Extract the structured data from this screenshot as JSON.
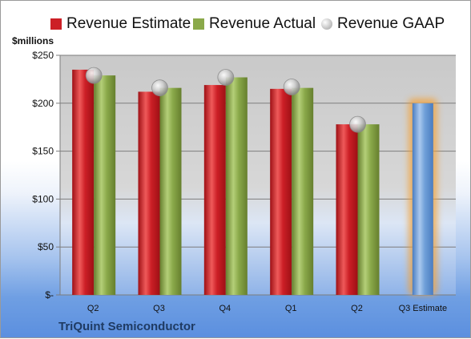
{
  "company": "TriQuint Semiconductor",
  "unit": "$millions",
  "legend": {
    "estimate": "Revenue Estimate",
    "actual": "Revenue Actual",
    "gaap": "Revenue GAAP"
  },
  "colors": {
    "estimate": "#cc1f26",
    "actual": "#8aa94a",
    "gaap": "#b8b8b8",
    "forecast": "#6f9fd8",
    "forecast_glow": "#f2a23a"
  },
  "chart_data": {
    "type": "bar",
    "categories": [
      "Q2",
      "Q3",
      "Q4",
      "Q1",
      "Q2",
      "Q3 Estimate"
    ],
    "series": [
      {
        "name": "Revenue Estimate",
        "values": [
          235,
          212,
          219,
          215,
          178,
          null
        ]
      },
      {
        "name": "Revenue Actual",
        "values": [
          229,
          216,
          227,
          216,
          178,
          null
        ]
      },
      {
        "name": "Revenue GAAP",
        "type": "scatter",
        "values": [
          229,
          216,
          227,
          217,
          178,
          null
        ]
      }
    ],
    "forecast": {
      "category": "Q3 Estimate",
      "value": 200
    },
    "y_ticks": [
      "$250",
      "$200",
      "$150",
      "$100",
      "$50",
      "$-"
    ],
    "y_tick_values": [
      250,
      200,
      150,
      100,
      50,
      0
    ],
    "ylim": [
      0,
      250
    ],
    "legend_position": "top",
    "grid": true
  }
}
